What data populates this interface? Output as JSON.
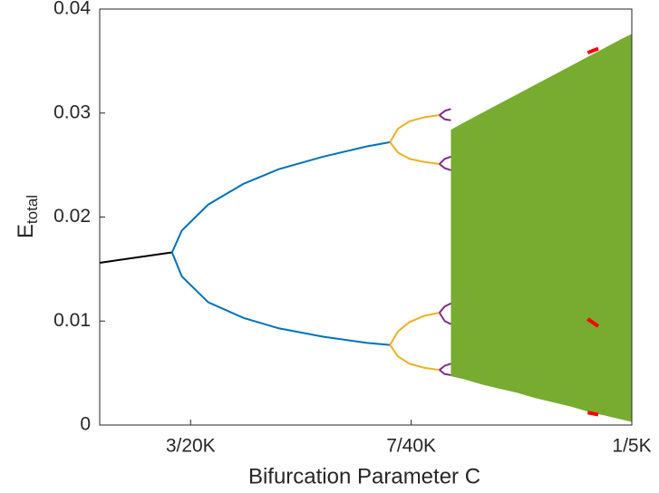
{
  "chart_data": {
    "type": "line",
    "xlabel": "Bifurcation Parameter C",
    "ylabel": "E",
    "ylabel_sub": "total",
    "xlim": [
      0.1397,
      0.2
    ],
    "xticks": [
      {
        "value": 0.15,
        "label": "3/20K"
      },
      {
        "value": 0.175,
        "label": "7/40K"
      },
      {
        "value": 0.2,
        "label": "1/5K"
      }
    ],
    "ylim": [
      0,
      0.04
    ],
    "yticks": [
      0,
      0.01,
      0.02,
      0.03,
      0.04
    ],
    "band": {
      "color": "#77ac30",
      "x": [
        0.1795,
        0.181,
        0.183,
        0.185,
        0.187,
        0.189,
        0.191,
        0.193,
        0.195,
        0.197,
        0.199,
        0.2
      ],
      "upper": [
        0.0284,
        0.0291,
        0.03,
        0.0309,
        0.0318,
        0.0327,
        0.0336,
        0.0345,
        0.0354,
        0.0363,
        0.0372,
        0.0376
      ],
      "lower": [
        0.0047,
        0.0044,
        0.0039,
        0.0035,
        0.0031,
        0.0026,
        0.0022,
        0.0018,
        0.0013,
        0.0009,
        0.0005,
        0.0003
      ]
    },
    "series": [
      {
        "color": "#000000",
        "x": [
          0.1397,
          0.1479
        ],
        "values": [
          0.0156,
          0.0166
        ]
      },
      {
        "color": "#0072bd",
        "x": [
          0.1479,
          0.149,
          0.152,
          0.156,
          0.16,
          0.165,
          0.17,
          0.1726
        ],
        "values": [
          0.0166,
          0.0187,
          0.0212,
          0.0232,
          0.0246,
          0.0258,
          0.0268,
          0.0272
        ]
      },
      {
        "color": "#0072bd",
        "x": [
          0.1479,
          0.149,
          0.152,
          0.156,
          0.16,
          0.165,
          0.17,
          0.1726
        ],
        "values": [
          0.0166,
          0.0143,
          0.0118,
          0.0103,
          0.0093,
          0.0085,
          0.0079,
          0.0077
        ]
      },
      {
        "color": "#edb120",
        "x": [
          0.1726,
          0.1735,
          0.1748,
          0.1765,
          0.1782
        ],
        "values": [
          0.0272,
          0.0285,
          0.0292,
          0.0296,
          0.0298
        ]
      },
      {
        "color": "#edb120",
        "x": [
          0.1726,
          0.1735,
          0.1748,
          0.1765,
          0.1782
        ],
        "values": [
          0.0272,
          0.0262,
          0.0256,
          0.0253,
          0.0251
        ]
      },
      {
        "color": "#edb120",
        "x": [
          0.1726,
          0.1735,
          0.1748,
          0.1765,
          0.1782
        ],
        "values": [
          0.0077,
          0.009,
          0.0099,
          0.0105,
          0.0108
        ]
      },
      {
        "color": "#edb120",
        "x": [
          0.1726,
          0.1735,
          0.1748,
          0.1765,
          0.1782
        ],
        "values": [
          0.0077,
          0.0066,
          0.0059,
          0.0055,
          0.0053
        ]
      },
      {
        "color": "#7e2f8e",
        "x": [
          0.1782,
          0.1788,
          0.1795
        ],
        "values": [
          0.0298,
          0.0302,
          0.0304
        ]
      },
      {
        "color": "#7e2f8e",
        "x": [
          0.1782,
          0.1788,
          0.1795
        ],
        "values": [
          0.0298,
          0.0294,
          0.0293
        ]
      },
      {
        "color": "#7e2f8e",
        "x": [
          0.1782,
          0.1788,
          0.1795
        ],
        "values": [
          0.0251,
          0.0256,
          0.0258
        ]
      },
      {
        "color": "#7e2f8e",
        "x": [
          0.1782,
          0.1788,
          0.1795
        ],
        "values": [
          0.0251,
          0.0247,
          0.0245
        ]
      },
      {
        "color": "#7e2f8e",
        "x": [
          0.1782,
          0.1788,
          0.1795
        ],
        "values": [
          0.0108,
          0.0114,
          0.0117
        ]
      },
      {
        "color": "#7e2f8e",
        "x": [
          0.1782,
          0.1788,
          0.1795
        ],
        "values": [
          0.0108,
          0.01,
          0.0097
        ]
      },
      {
        "color": "#7e2f8e",
        "x": [
          0.1782,
          0.1788,
          0.1795
        ],
        "values": [
          0.0053,
          0.0057,
          0.0059
        ]
      },
      {
        "color": "#7e2f8e",
        "x": [
          0.1782,
          0.1788,
          0.1795
        ],
        "values": [
          0.0053,
          0.0049,
          0.0048
        ]
      },
      {
        "color": "#ff0000",
        "x": [
          0.195,
          0.1962
        ],
        "values": [
          0.0358,
          0.0362
        ]
      },
      {
        "color": "#ff0000",
        "x": [
          0.195,
          0.1962
        ],
        "values": [
          0.0102,
          0.0095
        ]
      },
      {
        "color": "#ff0000",
        "x": [
          0.195,
          0.1962
        ],
        "values": [
          0.0012,
          0.001
        ]
      }
    ]
  }
}
